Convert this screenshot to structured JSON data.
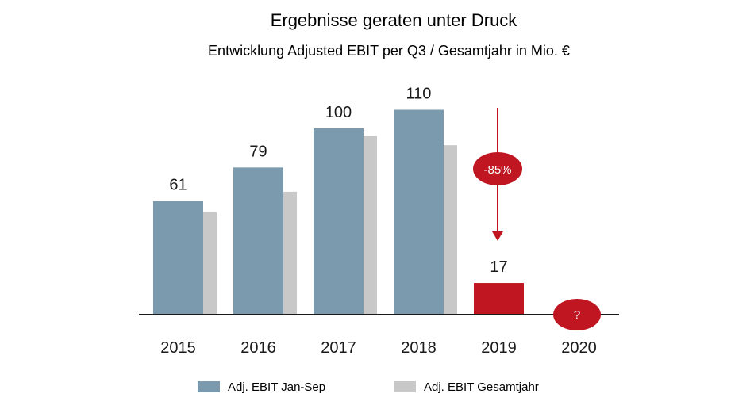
{
  "chart_data": {
    "type": "bar",
    "title": "Ergebnisse geraten unter Druck",
    "subtitle": "Entwicklung Adjusted EBIT per Q3 / Gesamtjahr in Mio. €",
    "categories": [
      "2015",
      "2016",
      "2017",
      "2018",
      "2019",
      "2020"
    ],
    "series": [
      {
        "name": "Adj. EBIT Jan-Sep",
        "values": [
          61,
          79,
          100,
          110,
          17,
          null
        ],
        "data_labels": [
          "61",
          "79",
          "100",
          "110",
          "17",
          ""
        ]
      },
      {
        "name": "Adj. EBIT Gesamtjahr",
        "values": [
          55,
          66,
          96,
          91,
          null,
          null
        ]
      }
    ],
    "annotations": [
      {
        "text": "-85%",
        "category": "2019"
      },
      {
        "text": "?",
        "category": "2020"
      }
    ],
    "ylim": [
      0,
      120
    ],
    "grid": false,
    "legend_position": "bottom"
  },
  "colors": {
    "primary": "#7b9aad",
    "secondary": "#c8c8c8",
    "highlight": "#c01621",
    "axis": "#1a1a1a"
  }
}
